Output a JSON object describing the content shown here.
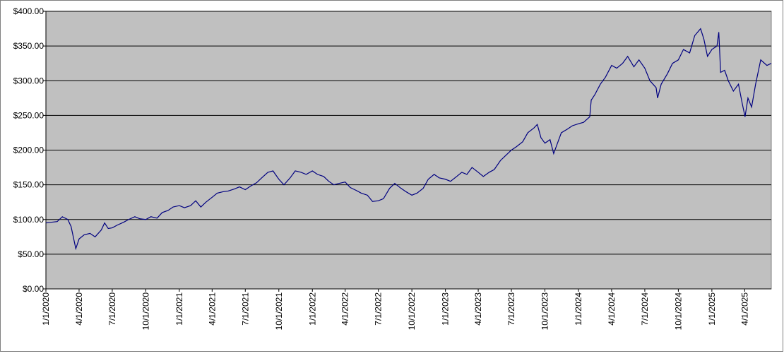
{
  "chart_data": {
    "type": "line",
    "x": [
      "2020-01-01",
      "2020-01-15",
      "2020-02-01",
      "2020-02-15",
      "2020-03-01",
      "2020-03-10",
      "2020-03-23",
      "2020-04-01",
      "2020-04-15",
      "2020-05-01",
      "2020-05-15",
      "2020-06-01",
      "2020-06-10",
      "2020-06-20",
      "2020-07-01",
      "2020-07-15",
      "2020-08-01",
      "2020-08-15",
      "2020-09-01",
      "2020-09-15",
      "2020-10-01",
      "2020-10-15",
      "2020-11-01",
      "2020-11-15",
      "2020-12-01",
      "2020-12-15",
      "2021-01-01",
      "2021-01-15",
      "2021-02-01",
      "2021-02-15",
      "2021-03-01",
      "2021-03-15",
      "2021-04-01",
      "2021-04-15",
      "2021-05-01",
      "2021-05-15",
      "2021-06-01",
      "2021-06-15",
      "2021-07-01",
      "2021-07-15",
      "2021-08-01",
      "2021-08-15",
      "2021-09-01",
      "2021-09-15",
      "2021-10-01",
      "2021-10-15",
      "2021-11-01",
      "2021-11-15",
      "2021-12-01",
      "2021-12-15",
      "2022-01-01",
      "2022-01-15",
      "2022-02-01",
      "2022-02-15",
      "2022-03-01",
      "2022-03-15",
      "2022-04-01",
      "2022-04-15",
      "2022-05-01",
      "2022-05-15",
      "2022-06-01",
      "2022-06-15",
      "2022-07-01",
      "2022-07-15",
      "2022-08-01",
      "2022-08-15",
      "2022-09-01",
      "2022-09-15",
      "2022-10-01",
      "2022-10-15",
      "2022-11-01",
      "2022-11-15",
      "2022-12-01",
      "2022-12-15",
      "2023-01-01",
      "2023-01-15",
      "2023-02-01",
      "2023-02-15",
      "2023-03-01",
      "2023-03-15",
      "2023-04-01",
      "2023-04-15",
      "2023-05-01",
      "2023-05-15",
      "2023-06-01",
      "2023-06-15",
      "2023-07-01",
      "2023-07-15",
      "2023-08-01",
      "2023-08-15",
      "2023-09-01",
      "2023-09-10",
      "2023-09-20",
      "2023-10-01",
      "2023-10-15",
      "2023-10-25",
      "2023-11-01",
      "2023-11-15",
      "2023-12-01",
      "2023-12-15",
      "2024-01-01",
      "2024-01-15",
      "2024-02-01",
      "2024-02-05",
      "2024-02-15",
      "2024-03-01",
      "2024-03-15",
      "2024-04-01",
      "2024-04-15",
      "2024-05-01",
      "2024-05-15",
      "2024-06-01",
      "2024-06-15",
      "2024-07-01",
      "2024-07-15",
      "2024-08-01",
      "2024-08-05",
      "2024-08-15",
      "2024-09-01",
      "2024-09-15",
      "2024-10-01",
      "2024-10-15",
      "2024-11-01",
      "2024-11-15",
      "2024-12-01",
      "2024-12-10",
      "2024-12-20",
      "2025-01-01",
      "2025-01-15",
      "2025-01-20",
      "2025-01-25",
      "2025-02-05",
      "2025-02-15",
      "2025-03-01",
      "2025-03-15",
      "2025-03-25",
      "2025-04-02",
      "2025-04-10",
      "2025-04-20",
      "2025-05-01",
      "2025-05-15",
      "2025-06-01",
      "2025-06-13"
    ],
    "series": [
      {
        "color": "#000080",
        "values": [
          95,
          96,
          97,
          104,
          100,
          90,
          58,
          72,
          78,
          80,
          75,
          85,
          95,
          87,
          88,
          92,
          96,
          100,
          104,
          101,
          100,
          104,
          102,
          110,
          113,
          118,
          120,
          117,
          120,
          127,
          118,
          125,
          132,
          138,
          140,
          141,
          144,
          147,
          143,
          148,
          153,
          160,
          168,
          170,
          158,
          150,
          160,
          170,
          168,
          165,
          170,
          165,
          162,
          155,
          150,
          152,
          154,
          146,
          142,
          138,
          135,
          126,
          127,
          130,
          145,
          152,
          145,
          140,
          135,
          138,
          145,
          158,
          165,
          160,
          158,
          155,
          162,
          168,
          165,
          175,
          168,
          162,
          168,
          172,
          185,
          192,
          200,
          205,
          212,
          225,
          232,
          237,
          218,
          210,
          215,
          195,
          205,
          225,
          230,
          235,
          238,
          240,
          248,
          272,
          280,
          295,
          305,
          322,
          318,
          325,
          335,
          320,
          330,
          318,
          300,
          290,
          275,
          295,
          310,
          325,
          330,
          345,
          340,
          365,
          375,
          360,
          335,
          345,
          350,
          370,
          312,
          315,
          300,
          285,
          295,
          268,
          248,
          275,
          262,
          295,
          330,
          322,
          325
        ]
      }
    ],
    "xlim": [
      "2020-01-01",
      "2025-06-13"
    ],
    "xticks": [
      {
        "value": "2020-01-01",
        "label": "1/1/2020"
      },
      {
        "value": "2020-04-01",
        "label": "4/1/2020"
      },
      {
        "value": "2020-07-01",
        "label": "7/1/2020"
      },
      {
        "value": "2020-10-01",
        "label": "10/1/2020"
      },
      {
        "value": "2021-01-01",
        "label": "1/1/2021"
      },
      {
        "value": "2021-04-01",
        "label": "4/1/2021"
      },
      {
        "value": "2021-07-01",
        "label": "7/1/2021"
      },
      {
        "value": "2021-10-01",
        "label": "10/1/2021"
      },
      {
        "value": "2022-01-01",
        "label": "1/1/2022"
      },
      {
        "value": "2022-04-01",
        "label": "4/1/2022"
      },
      {
        "value": "2022-07-01",
        "label": "7/1/2022"
      },
      {
        "value": "2022-10-01",
        "label": "10/1/2022"
      },
      {
        "value": "2023-01-01",
        "label": "1/1/2023"
      },
      {
        "value": "2023-04-01",
        "label": "4/1/2023"
      },
      {
        "value": "2023-07-01",
        "label": "7/1/2023"
      },
      {
        "value": "2023-10-01",
        "label": "10/1/2023"
      },
      {
        "value": "2024-01-01",
        "label": "1/1/2024"
      },
      {
        "value": "2024-04-01",
        "label": "4/1/2024"
      },
      {
        "value": "2024-07-01",
        "label": "7/1/2024"
      },
      {
        "value": "2024-10-01",
        "label": "10/1/2024"
      },
      {
        "value": "2025-01-01",
        "label": "1/1/2025"
      },
      {
        "value": "2025-04-01",
        "label": "4/1/2025"
      }
    ],
    "ylim": [
      0,
      400
    ],
    "yticks": [
      {
        "value": 0,
        "label": "$0.00"
      },
      {
        "value": 50,
        "label": "$50.00"
      },
      {
        "value": 100,
        "label": "$100.00"
      },
      {
        "value": 150,
        "label": "$150.00"
      },
      {
        "value": 200,
        "label": "$200.00"
      },
      {
        "value": 250,
        "label": "$250.00"
      },
      {
        "value": 300,
        "label": "$300.00"
      },
      {
        "value": 350,
        "label": "$350.00"
      },
      {
        "value": 400,
        "label": "$400.00"
      }
    ],
    "grid": true
  }
}
